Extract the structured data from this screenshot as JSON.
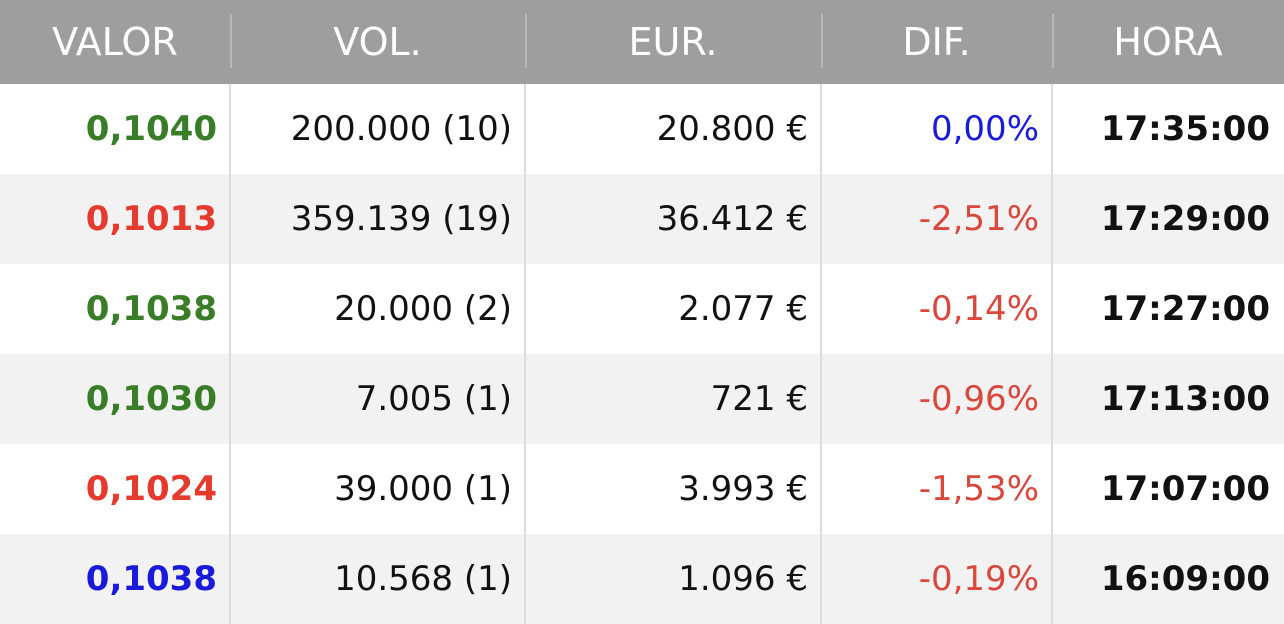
{
  "headers": {
    "valor": "VALOR",
    "vol": "VOL.",
    "eur": "EUR.",
    "dif": "DIF.",
    "hora": "HORA"
  },
  "rows": [
    {
      "valor": "0,1040",
      "valor_trend": "up",
      "vol": "200.000 (10)",
      "eur": "20.800 €",
      "dif": "0,00%",
      "dif_trend": "flat",
      "hora": "17:35:00"
    },
    {
      "valor": "0,1013",
      "valor_trend": "down",
      "vol": "359.139 (19)",
      "eur": "36.412 €",
      "dif": "-2,51%",
      "dif_trend": "down",
      "hora": "17:29:00"
    },
    {
      "valor": "0,1038",
      "valor_trend": "up",
      "vol": "20.000 (2)",
      "eur": "2.077 €",
      "dif": "-0,14%",
      "dif_trend": "down",
      "hora": "17:27:00"
    },
    {
      "valor": "0,1030",
      "valor_trend": "up",
      "vol": "7.005 (1)",
      "eur": "721 €",
      "dif": "-0,96%",
      "dif_trend": "down",
      "hora": "17:13:00"
    },
    {
      "valor": "0,1024",
      "valor_trend": "down",
      "vol": "39.000 (1)",
      "eur": "3.993 €",
      "dif": "-1,53%",
      "dif_trend": "down",
      "hora": "17:07:00"
    },
    {
      "valor": "0,1038",
      "valor_trend": "flat",
      "vol": "10.568 (1)",
      "eur": "1.096 €",
      "dif": "-0,19%",
      "dif_trend": "down",
      "hora": "16:09:00"
    }
  ],
  "colors": {
    "header_bg": "#9e9e9e",
    "up": "#3a7d28",
    "down": "#e53b2f",
    "flat": "#1a1adb"
  }
}
